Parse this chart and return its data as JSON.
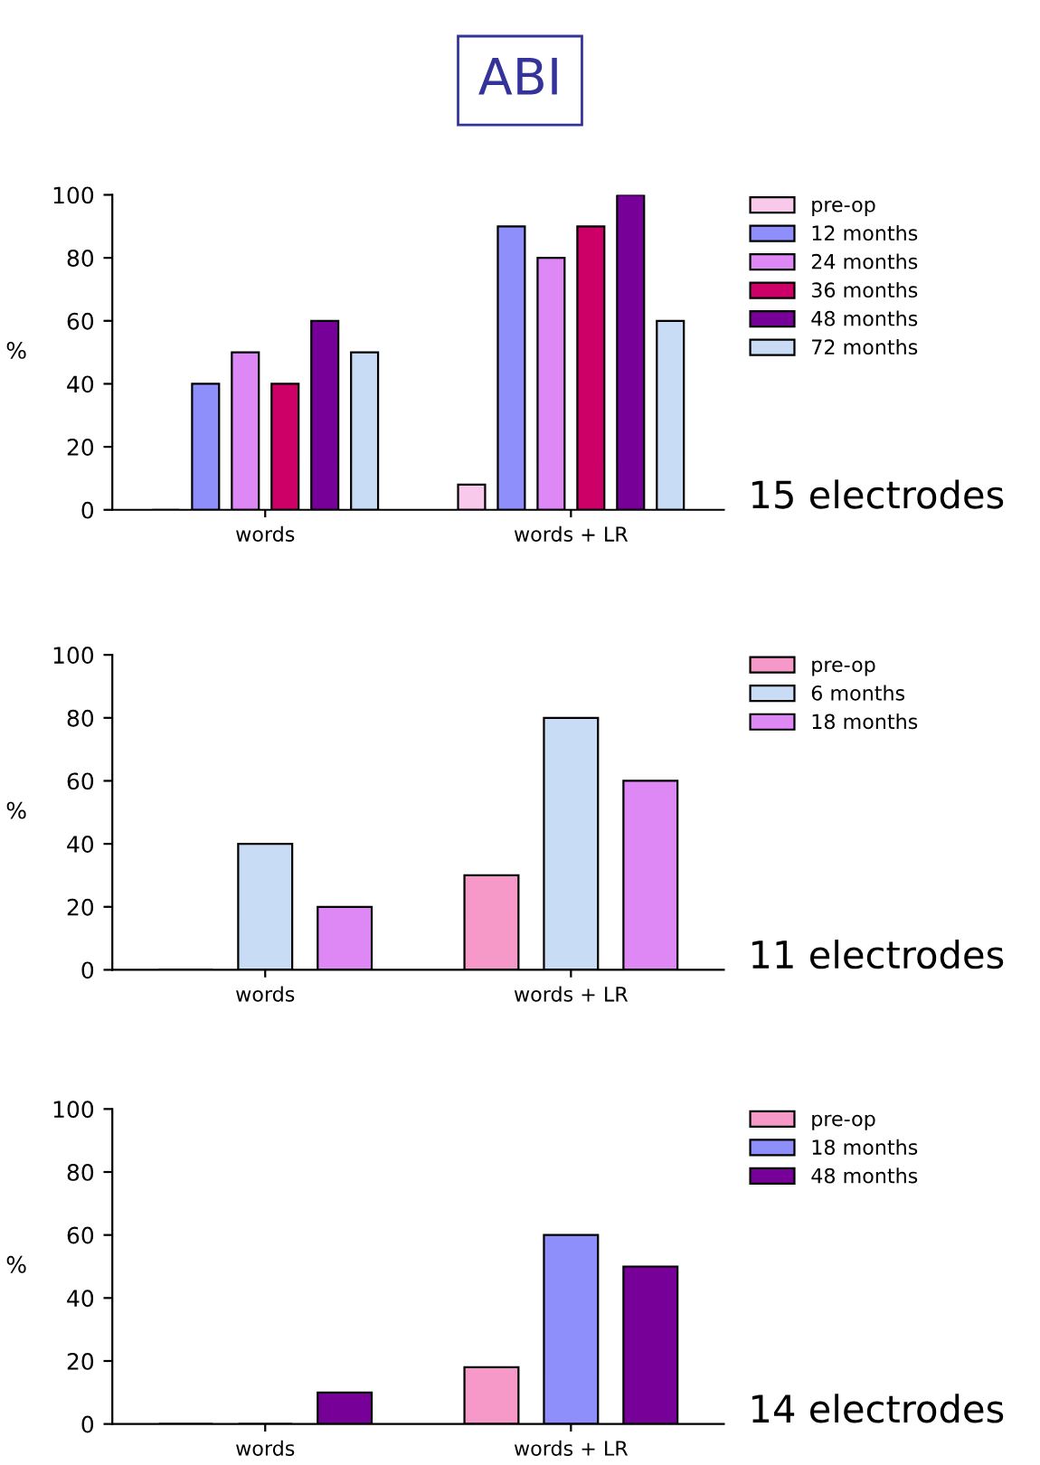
{
  "chart_data": [
    {
      "type": "bar",
      "title": "ABI",
      "categories": [
        "words",
        "words + LR"
      ],
      "ylabel": "%",
      "ylim": [
        0,
        100
      ],
      "yticks": [
        0,
        20,
        40,
        60,
        80,
        100
      ],
      "grid": false,
      "legend": "right",
      "annotations": [
        "15 electrodes"
      ],
      "series": [
        {
          "name": "pre-op",
          "color": "#f9c9ec",
          "values": [
            0,
            8
          ]
        },
        {
          "name": "12 months",
          "color": "#8f8ffb",
          "values": [
            40,
            90
          ]
        },
        {
          "name": "24 months",
          "color": "#dd88f5",
          "values": [
            50,
            80
          ]
        },
        {
          "name": "36 months",
          "color": "#cc0066",
          "values": [
            40,
            90
          ]
        },
        {
          "name": "48 months",
          "color": "#770099",
          "values": [
            60,
            100
          ]
        },
        {
          "name": "72 months",
          "color": "#c8ddf5",
          "values": [
            50,
            60
          ]
        }
      ]
    },
    {
      "type": "bar",
      "categories": [
        "words",
        "words + LR"
      ],
      "ylabel": "%",
      "ylim": [
        0,
        100
      ],
      "yticks": [
        0,
        20,
        40,
        60,
        80,
        100
      ],
      "grid": false,
      "legend": "right",
      "annotations": [
        "11 electrodes"
      ],
      "series": [
        {
          "name": "pre-op",
          "color": "#f799c8",
          "values": [
            0,
            30
          ]
        },
        {
          "name": "6 months",
          "color": "#c8ddf5",
          "values": [
            40,
            80
          ]
        },
        {
          "name": "18 months",
          "color": "#dd88f5",
          "values": [
            20,
            60
          ]
        }
      ]
    },
    {
      "type": "bar",
      "categories": [
        "words",
        "words + LR"
      ],
      "ylabel": "%",
      "ylim": [
        0,
        100
      ],
      "yticks": [
        0,
        20,
        40,
        60,
        80,
        100
      ],
      "grid": false,
      "legend": "right",
      "annotations": [
        "14 electrodes"
      ],
      "series": [
        {
          "name": "pre-op",
          "color": "#f799c8",
          "values": [
            0,
            18
          ]
        },
        {
          "name": "18 months",
          "color": "#8f8ffb",
          "values": [
            0,
            60
          ]
        },
        {
          "name": "48 months",
          "color": "#770099",
          "values": [
            10,
            50
          ]
        }
      ]
    }
  ]
}
